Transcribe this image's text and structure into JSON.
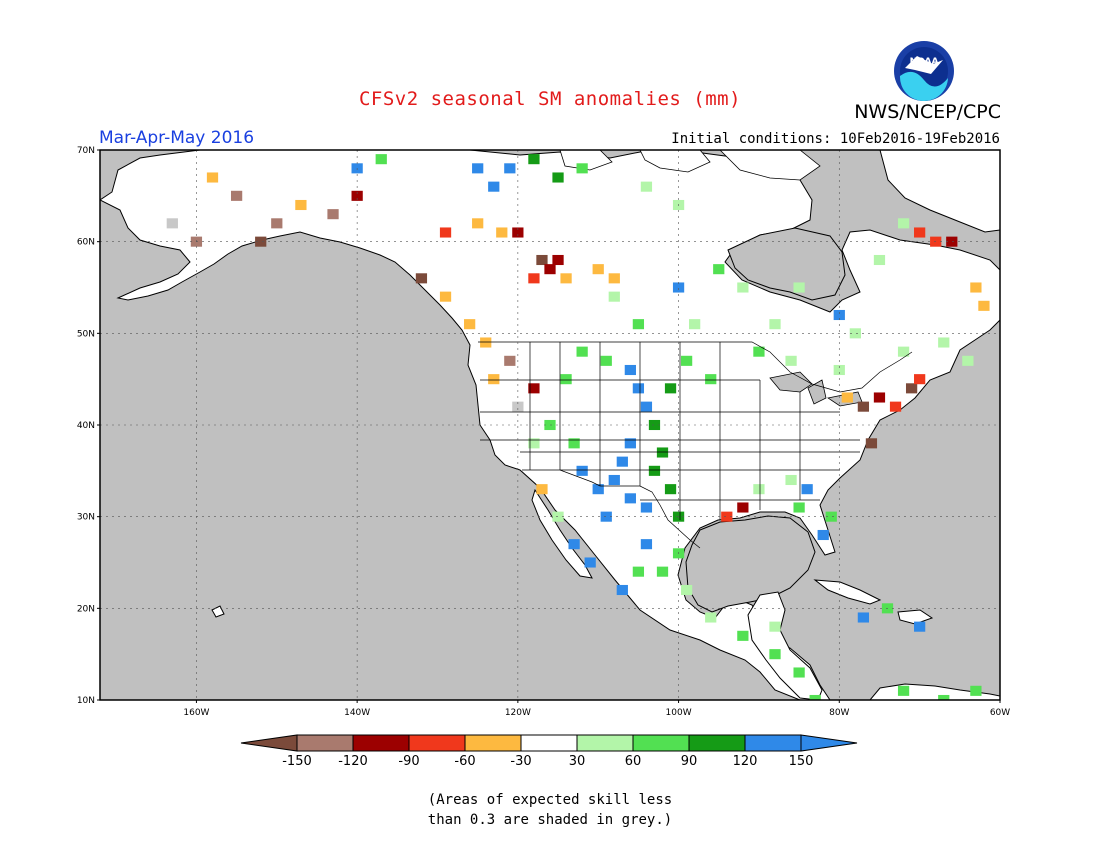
{
  "header": {
    "title": "CFSv2 seasonal SM anomalies (mm)",
    "agency": "NWS/NCEP/CPC",
    "period": "Mar-Apr-May 2016",
    "initial_conditions": "Initial conditions: 10Feb2016-19Feb2016"
  },
  "logo": {
    "text": "NOAA",
    "icon": "noaa-logo"
  },
  "map": {
    "lon_range": [
      -172,
      -60
    ],
    "lat_range": [
      10,
      70
    ],
    "lat_ticks": [
      {
        "value": 70,
        "label": "70N"
      },
      {
        "value": 60,
        "label": "60N"
      },
      {
        "value": 50,
        "label": "50N"
      },
      {
        "value": 40,
        "label": "40N"
      },
      {
        "value": 30,
        "label": "30N"
      },
      {
        "value": 20,
        "label": "20N"
      },
      {
        "value": 10,
        "label": "10N"
      }
    ],
    "lon_ticks": [
      {
        "value": -160,
        "label": "160W"
      },
      {
        "value": -140,
        "label": "140W"
      },
      {
        "value": -120,
        "label": "120W"
      },
      {
        "value": -100,
        "label": "100W"
      },
      {
        "value": -80,
        "label": "80W"
      },
      {
        "value": -60,
        "label": "60W"
      }
    ],
    "ocean_color": "#c0c0c0",
    "land_color": "#ffffff",
    "grid": "dotted"
  },
  "colorbar": {
    "colors": [
      "#7b4a3a",
      "#a97a6e",
      "#9c0000",
      "#f0381c",
      "#fdb940",
      "#ffffff",
      "#b3f5a9",
      "#52e052",
      "#159b16",
      "#2f89e8",
      "#2f89e8"
    ],
    "labels": [
      "-150",
      "-120",
      "-90",
      "-60",
      "-30",
      "30",
      "60",
      "90",
      "120",
      "150"
    ]
  },
  "note": {
    "line1": "(Areas of expected skill less",
    "line2": "than 0.3 are shaded in grey.)"
  },
  "anomaly_cells": [
    {
      "lon": -117,
      "lat": 58,
      "category": "brown"
    },
    {
      "lon": -116,
      "lat": 57,
      "category": "dark-red"
    },
    {
      "lon": -115,
      "lat": 58,
      "category": "dark-red"
    },
    {
      "lon": -118,
      "lat": 56,
      "category": "red"
    },
    {
      "lon": -114,
      "lat": 56,
      "category": "orange"
    },
    {
      "lon": -122,
      "lat": 61,
      "category": "orange"
    },
    {
      "lon": -120,
      "lat": 61,
      "category": "dark-red"
    },
    {
      "lon": -125,
      "lat": 62,
      "category": "orange"
    },
    {
      "lon": -129,
      "lat": 61,
      "category": "red"
    },
    {
      "lon": -110,
      "lat": 57,
      "category": "orange"
    },
    {
      "lon": -108,
      "lat": 56,
      "category": "orange"
    },
    {
      "lon": -106,
      "lat": 46,
      "category": "blue"
    },
    {
      "lon": -105,
      "lat": 44,
      "category": "blue"
    },
    {
      "lon": -104,
      "lat": 42,
      "category": "blue"
    },
    {
      "lon": -106,
      "lat": 38,
      "category": "blue"
    },
    {
      "lon": -107,
      "lat": 36,
      "category": "blue"
    },
    {
      "lon": -108,
      "lat": 34,
      "category": "blue"
    },
    {
      "lon": -106,
      "lat": 32,
      "category": "blue"
    },
    {
      "lon": -104,
      "lat": 31,
      "category": "blue"
    },
    {
      "lon": -109,
      "lat": 30,
      "category": "blue"
    },
    {
      "lon": -110,
      "lat": 33,
      "category": "blue"
    },
    {
      "lon": -112,
      "lat": 35,
      "category": "blue"
    },
    {
      "lon": -103,
      "lat": 35,
      "category": "dark-green"
    },
    {
      "lon": -101,
      "lat": 33,
      "category": "dark-green"
    },
    {
      "lon": -100,
      "lat": 30,
      "category": "dark-green"
    },
    {
      "lon": -102,
      "lat": 37,
      "category": "dark-green"
    },
    {
      "lon": -103,
      "lat": 40,
      "category": "dark-green"
    },
    {
      "lon": -101,
      "lat": 44,
      "category": "dark-green"
    },
    {
      "lon": -99,
      "lat": 47,
      "category": "green"
    },
    {
      "lon": -96,
      "lat": 45,
      "category": "green"
    },
    {
      "lon": -112,
      "lat": 48,
      "category": "green"
    },
    {
      "lon": -109,
      "lat": 47,
      "category": "green"
    },
    {
      "lon": -114,
      "lat": 45,
      "category": "green"
    },
    {
      "lon": -116,
      "lat": 40,
      "category": "green"
    },
    {
      "lon": -118,
      "lat": 38,
      "category": "light-green"
    },
    {
      "lon": -113,
      "lat": 38,
      "category": "green"
    },
    {
      "lon": -100,
      "lat": 26,
      "category": "green"
    },
    {
      "lon": -102,
      "lat": 24,
      "category": "green"
    },
    {
      "lon": -105,
      "lat": 24,
      "category": "green"
    },
    {
      "lon": -107,
      "lat": 22,
      "category": "blue"
    },
    {
      "lon": -104,
      "lat": 27,
      "category": "blue"
    },
    {
      "lon": -99,
      "lat": 22,
      "category": "light-green"
    },
    {
      "lon": -96,
      "lat": 19,
      "category": "light-green"
    },
    {
      "lon": -92,
      "lat": 17,
      "category": "green"
    },
    {
      "lon": -88,
      "lat": 15,
      "category": "green"
    },
    {
      "lon": -85,
      "lat": 13,
      "category": "green"
    },
    {
      "lon": -83,
      "lat": 10,
      "category": "green"
    },
    {
      "lon": -88,
      "lat": 18,
      "category": "light-green"
    },
    {
      "lon": -94,
      "lat": 30,
      "category": "red"
    },
    {
      "lon": -92,
      "lat": 31,
      "category": "dark-red"
    },
    {
      "lon": -90,
      "lat": 33,
      "category": "light-green"
    },
    {
      "lon": -86,
      "lat": 34,
      "category": "light-green"
    },
    {
      "lon": -84,
      "lat": 33,
      "category": "blue"
    },
    {
      "lon": -82,
      "lat": 28,
      "category": "blue"
    },
    {
      "lon": -81,
      "lat": 30,
      "category": "green"
    },
    {
      "lon": -85,
      "lat": 31,
      "category": "green"
    },
    {
      "lon": -77,
      "lat": 42,
      "category": "brown"
    },
    {
      "lon": -75,
      "lat": 43,
      "category": "dark-red"
    },
    {
      "lon": -73,
      "lat": 42,
      "category": "red"
    },
    {
      "lon": -71,
      "lat": 44,
      "category": "brown"
    },
    {
      "lon": -70,
      "lat": 45,
      "category": "red"
    },
    {
      "lon": -79,
      "lat": 43,
      "category": "orange"
    },
    {
      "lon": -76,
      "lat": 38,
      "category": "brown"
    },
    {
      "lon": -68,
      "lat": 60,
      "category": "red"
    },
    {
      "lon": -66,
      "lat": 60,
      "category": "dark-red"
    },
    {
      "lon": -70,
      "lat": 61,
      "category": "red"
    },
    {
      "lon": -63,
      "lat": 55,
      "category": "orange"
    },
    {
      "lon": -62,
      "lat": 53,
      "category": "orange"
    },
    {
      "lon": -158,
      "lat": 67,
      "category": "orange"
    },
    {
      "lon": -155,
      "lat": 65,
      "category": "light-brown"
    },
    {
      "lon": -152,
      "lat": 60,
      "category": "brown"
    },
    {
      "lon": -150,
      "lat": 62,
      "category": "light-brown"
    },
    {
      "lon": -147,
      "lat": 64,
      "category": "orange"
    },
    {
      "lon": -143,
      "lat": 63,
      "category": "light-brown"
    },
    {
      "lon": -140,
      "lat": 65,
      "category": "dark-red"
    },
    {
      "lon": -160,
      "lat": 60,
      "category": "light-brown"
    },
    {
      "lon": -163,
      "lat": 62,
      "category": "grey"
    },
    {
      "lon": -140,
      "lat": 68,
      "category": "blue"
    },
    {
      "lon": -137,
      "lat": 69,
      "category": "green"
    },
    {
      "lon": -125,
      "lat": 68,
      "category": "blue"
    },
    {
      "lon": -123,
      "lat": 66,
      "category": "blue"
    },
    {
      "lon": -121,
      "lat": 68,
      "category": "blue"
    },
    {
      "lon": -118,
      "lat": 69,
      "category": "dark-green"
    },
    {
      "lon": -115,
      "lat": 67,
      "category": "dark-green"
    },
    {
      "lon": -112,
      "lat": 68,
      "category": "green"
    },
    {
      "lon": -104,
      "lat": 66,
      "category": "light-green"
    },
    {
      "lon": -100,
      "lat": 64,
      "category": "light-green"
    },
    {
      "lon": -95,
      "lat": 57,
      "category": "green"
    },
    {
      "lon": -92,
      "lat": 55,
      "category": "light-green"
    },
    {
      "lon": -98,
      "lat": 51,
      "category": "light-green"
    },
    {
      "lon": -105,
      "lat": 51,
      "category": "green"
    },
    {
      "lon": -108,
      "lat": 54,
      "category": "light-green"
    },
    {
      "lon": -100,
      "lat": 55,
      "category": "blue"
    },
    {
      "lon": -132,
      "lat": 56,
      "category": "brown"
    },
    {
      "lon": -129,
      "lat": 54,
      "category": "orange"
    },
    {
      "lon": -126,
      "lat": 51,
      "category": "orange"
    },
    {
      "lon": -124,
      "lat": 49,
      "category": "orange"
    },
    {
      "lon": -121,
      "lat": 47,
      "category": "light-brown"
    },
    {
      "lon": -123,
      "lat": 45,
      "category": "orange"
    },
    {
      "lon": -118,
      "lat": 44,
      "category": "dark-red"
    },
    {
      "lon": -120,
      "lat": 42,
      "category": "grey"
    },
    {
      "lon": -72,
      "lat": 62,
      "category": "light-green"
    },
    {
      "lon": -75,
      "lat": 58,
      "category": "light-green"
    },
    {
      "lon": -78,
      "lat": 50,
      "category": "light-green"
    },
    {
      "lon": -80,
      "lat": 52,
      "category": "blue"
    },
    {
      "lon": -85,
      "lat": 55,
      "category": "light-green"
    },
    {
      "lon": -88,
      "lat": 51,
      "category": "light-green"
    },
    {
      "lon": -90,
      "lat": 48,
      "category": "green"
    },
    {
      "lon": -86,
      "lat": 47,
      "category": "light-green"
    },
    {
      "lon": -80,
      "lat": 46,
      "category": "light-green"
    },
    {
      "lon": -72,
      "lat": 48,
      "category": "light-green"
    },
    {
      "lon": -67,
      "lat": 49,
      "category": "light-green"
    },
    {
      "lon": -64,
      "lat": 47,
      "category": "light-green"
    },
    {
      "lon": -77,
      "lat": 19,
      "category": "blue"
    },
    {
      "lon": -74,
      "lat": 20,
      "category": "green"
    },
    {
      "lon": -70,
      "lat": 18,
      "category": "blue"
    },
    {
      "lon": -72,
      "lat": 11,
      "category": "green"
    },
    {
      "lon": -67,
      "lat": 10,
      "category": "green"
    },
    {
      "lon": -63,
      "lat": 11,
      "category": "green"
    },
    {
      "lon": -113,
      "lat": 27,
      "category": "blue"
    },
    {
      "lon": -111,
      "lat": 25,
      "category": "blue"
    },
    {
      "lon": -115,
      "lat": 30,
      "category": "light-green"
    },
    {
      "lon": -117,
      "lat": 33,
      "category": "orange"
    }
  ]
}
